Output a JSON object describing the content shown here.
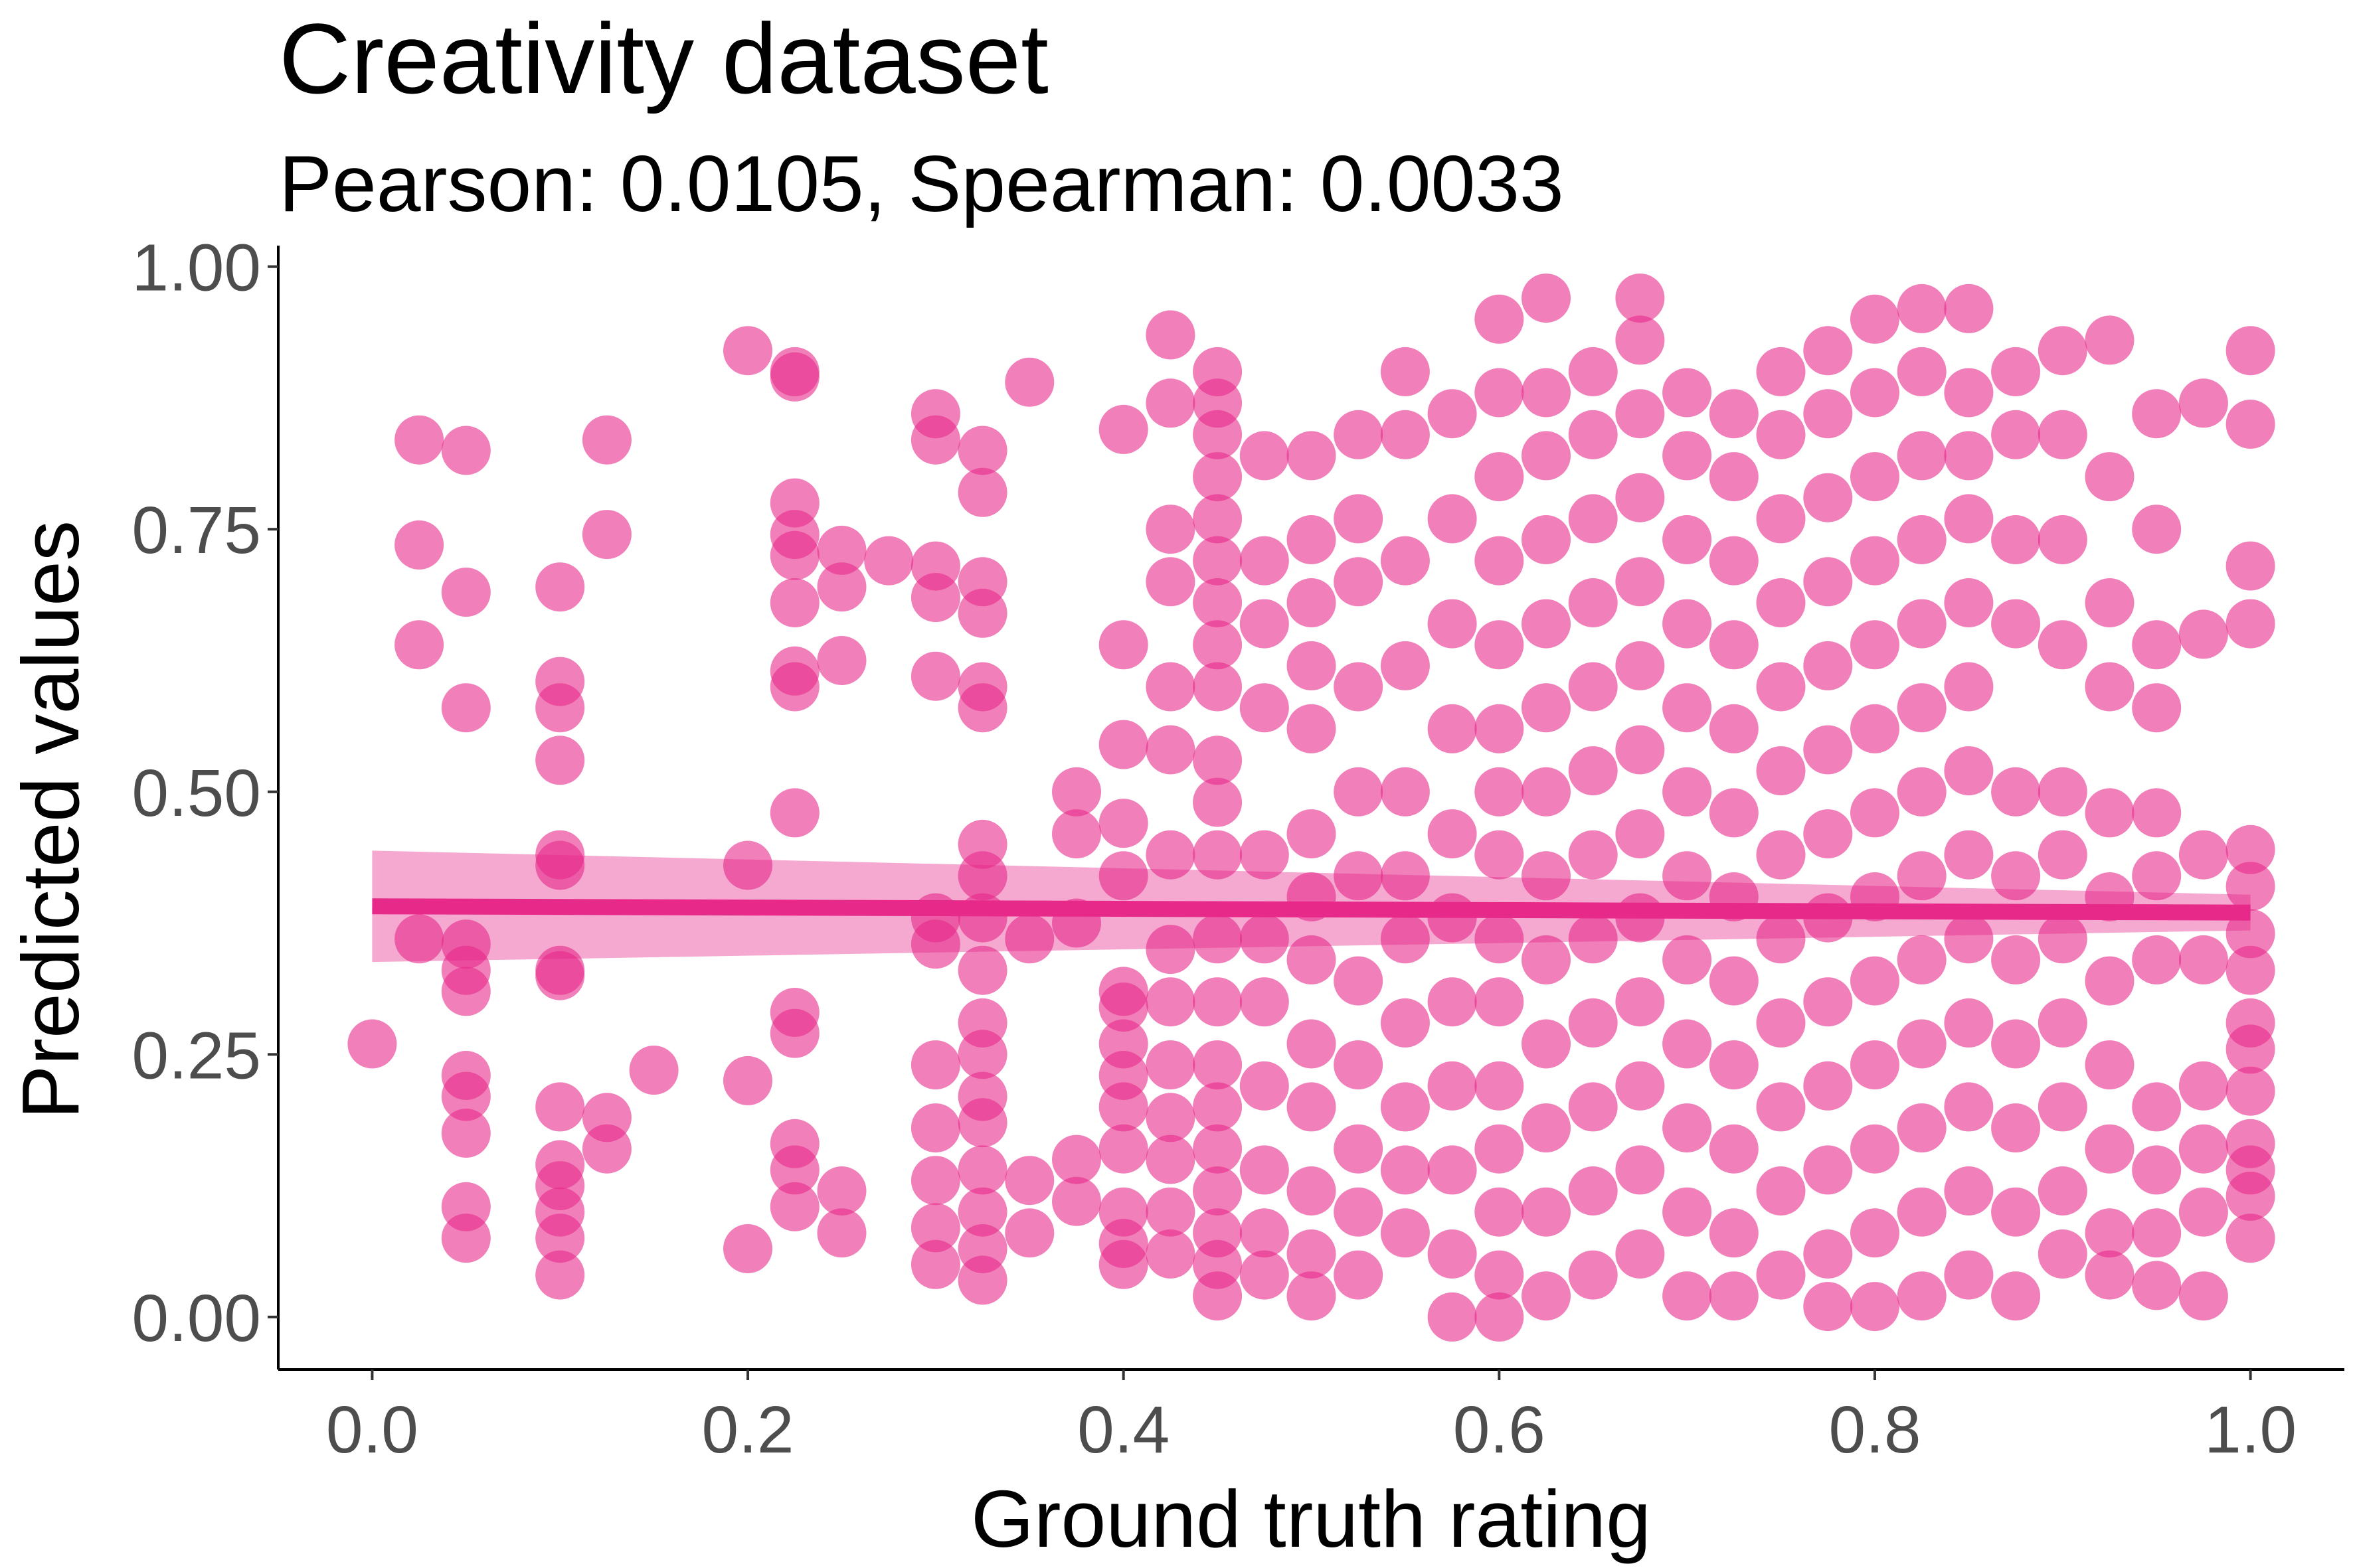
{
  "chart_data": {
    "type": "scatter",
    "title": "Creativity dataset",
    "subtitle": "Pearson: 0.0105, Spearman: 0.0033",
    "xlabel": "Ground truth rating",
    "ylabel": "Predicted values",
    "xlim": [
      -0.05,
      1.05
    ],
    "ylim": [
      -0.05,
      1.02
    ],
    "x_ticks": [
      0.0,
      0.2,
      0.4,
      0.6,
      0.8,
      1.0
    ],
    "x_tick_labels": [
      "0.0",
      "0.2",
      "0.4",
      "0.6",
      "0.8",
      "1.0"
    ],
    "y_ticks": [
      0.0,
      0.25,
      0.5,
      0.75,
      1.0
    ],
    "y_tick_labels": [
      "0.00",
      "0.25",
      "0.50",
      "0.75",
      "1.00"
    ],
    "grid": false,
    "legend": "none",
    "point_color": "#e7298a",
    "point_opacity": 0.6,
    "regression": {
      "type": "linear",
      "x": [
        0.0,
        1.0
      ],
      "y": [
        0.391,
        0.385
      ],
      "ci_lower": [
        0.338,
        0.368
      ],
      "ci_upper": [
        0.444,
        0.402
      ]
    },
    "points": [
      [
        0.0,
        0.26
      ],
      [
        0.025,
        0.835
      ],
      [
        0.025,
        0.735
      ],
      [
        0.025,
        0.64
      ],
      [
        0.025,
        0.36
      ],
      [
        0.05,
        0.825
      ],
      [
        0.05,
        0.69
      ],
      [
        0.05,
        0.58
      ],
      [
        0.05,
        0.355
      ],
      [
        0.05,
        0.33
      ],
      [
        0.05,
        0.31
      ],
      [
        0.05,
        0.23
      ],
      [
        0.05,
        0.21
      ],
      [
        0.05,
        0.175
      ],
      [
        0.05,
        0.105
      ],
      [
        0.05,
        0.075
      ],
      [
        0.1,
        0.695
      ],
      [
        0.1,
        0.605
      ],
      [
        0.1,
        0.58
      ],
      [
        0.1,
        0.53
      ],
      [
        0.1,
        0.44
      ],
      [
        0.1,
        0.43
      ],
      [
        0.1,
        0.33
      ],
      [
        0.1,
        0.325
      ],
      [
        0.1,
        0.2
      ],
      [
        0.1,
        0.145
      ],
      [
        0.1,
        0.125
      ],
      [
        0.1,
        0.1
      ],
      [
        0.1,
        0.075
      ],
      [
        0.1,
        0.04
      ],
      [
        0.125,
        0.835
      ],
      [
        0.125,
        0.745
      ],
      [
        0.125,
        0.19
      ],
      [
        0.125,
        0.16
      ],
      [
        0.15,
        0.235
      ],
      [
        0.2,
        0.92
      ],
      [
        0.2,
        0.43
      ],
      [
        0.2,
        0.225
      ],
      [
        0.2,
        0.065
      ],
      [
        0.225,
        0.9
      ],
      [
        0.225,
        0.895
      ],
      [
        0.225,
        0.775
      ],
      [
        0.225,
        0.745
      ],
      [
        0.225,
        0.725
      ],
      [
        0.225,
        0.68
      ],
      [
        0.225,
        0.615
      ],
      [
        0.225,
        0.6
      ],
      [
        0.225,
        0.48
      ],
      [
        0.225,
        0.29
      ],
      [
        0.225,
        0.27
      ],
      [
        0.225,
        0.165
      ],
      [
        0.225,
        0.14
      ],
      [
        0.225,
        0.105
      ],
      [
        0.25,
        0.73
      ],
      [
        0.25,
        0.695
      ],
      [
        0.25,
        0.625
      ],
      [
        0.25,
        0.12
      ],
      [
        0.25,
        0.08
      ],
      [
        0.275,
        0.72
      ],
      [
        0.3,
        0.86
      ],
      [
        0.3,
        0.835
      ],
      [
        0.3,
        0.715
      ],
      [
        0.3,
        0.685
      ],
      [
        0.3,
        0.61
      ],
      [
        0.3,
        0.38
      ],
      [
        0.3,
        0.355
      ],
      [
        0.3,
        0.24
      ],
      [
        0.3,
        0.18
      ],
      [
        0.3,
        0.13
      ],
      [
        0.3,
        0.085
      ],
      [
        0.3,
        0.05
      ],
      [
        0.325,
        0.825
      ],
      [
        0.325,
        0.785
      ],
      [
        0.325,
        0.7
      ],
      [
        0.325,
        0.67
      ],
      [
        0.325,
        0.6
      ],
      [
        0.325,
        0.58
      ],
      [
        0.325,
        0.45
      ],
      [
        0.325,
        0.42
      ],
      [
        0.325,
        0.38
      ],
      [
        0.325,
        0.33
      ],
      [
        0.325,
        0.28
      ],
      [
        0.325,
        0.25
      ],
      [
        0.325,
        0.21
      ],
      [
        0.325,
        0.185
      ],
      [
        0.325,
        0.14
      ],
      [
        0.325,
        0.1
      ],
      [
        0.325,
        0.065
      ],
      [
        0.325,
        0.035
      ],
      [
        0.35,
        0.89
      ],
      [
        0.35,
        0.36
      ],
      [
        0.35,
        0.13
      ],
      [
        0.35,
        0.08
      ],
      [
        0.375,
        0.5
      ],
      [
        0.375,
        0.46
      ],
      [
        0.375,
        0.375
      ],
      [
        0.375,
        0.15
      ],
      [
        0.375,
        0.11
      ],
      [
        0.4,
        0.845
      ],
      [
        0.4,
        0.64
      ],
      [
        0.4,
        0.545
      ],
      [
        0.4,
        0.47
      ],
      [
        0.4,
        0.42
      ],
      [
        0.4,
        0.31
      ],
      [
        0.4,
        0.295
      ],
      [
        0.4,
        0.26
      ],
      [
        0.4,
        0.23
      ],
      [
        0.4,
        0.2
      ],
      [
        0.4,
        0.16
      ],
      [
        0.4,
        0.1
      ],
      [
        0.4,
        0.07
      ],
      [
        0.4,
        0.05
      ],
      [
        0.425,
        0.935
      ],
      [
        0.425,
        0.87
      ],
      [
        0.425,
        0.75
      ],
      [
        0.425,
        0.7
      ],
      [
        0.425,
        0.6
      ],
      [
        0.425,
        0.54
      ],
      [
        0.425,
        0.44
      ],
      [
        0.425,
        0.35
      ],
      [
        0.425,
        0.3
      ],
      [
        0.425,
        0.24
      ],
      [
        0.425,
        0.19
      ],
      [
        0.425,
        0.15
      ],
      [
        0.425,
        0.1
      ],
      [
        0.425,
        0.06
      ],
      [
        0.45,
        0.9
      ],
      [
        0.45,
        0.87
      ],
      [
        0.45,
        0.84
      ],
      [
        0.45,
        0.8
      ],
      [
        0.45,
        0.76
      ],
      [
        0.45,
        0.72
      ],
      [
        0.45,
        0.68
      ],
      [
        0.45,
        0.64
      ],
      [
        0.45,
        0.6
      ],
      [
        0.45,
        0.53
      ],
      [
        0.45,
        0.49
      ],
      [
        0.45,
        0.44
      ],
      [
        0.45,
        0.36
      ],
      [
        0.45,
        0.3
      ],
      [
        0.45,
        0.24
      ],
      [
        0.45,
        0.2
      ],
      [
        0.45,
        0.16
      ],
      [
        0.45,
        0.12
      ],
      [
        0.45,
        0.08
      ],
      [
        0.45,
        0.05
      ],
      [
        0.45,
        0.02
      ],
      [
        0.475,
        0.82
      ],
      [
        0.475,
        0.72
      ],
      [
        0.475,
        0.66
      ],
      [
        0.475,
        0.58
      ],
      [
        0.475,
        0.44
      ],
      [
        0.475,
        0.36
      ],
      [
        0.475,
        0.3
      ],
      [
        0.475,
        0.22
      ],
      [
        0.475,
        0.14
      ],
      [
        0.475,
        0.08
      ],
      [
        0.475,
        0.04
      ],
      [
        0.5,
        0.82
      ],
      [
        0.5,
        0.74
      ],
      [
        0.5,
        0.68
      ],
      [
        0.5,
        0.62
      ],
      [
        0.5,
        0.56
      ],
      [
        0.5,
        0.46
      ],
      [
        0.5,
        0.4
      ],
      [
        0.5,
        0.34
      ],
      [
        0.5,
        0.26
      ],
      [
        0.5,
        0.2
      ],
      [
        0.5,
        0.12
      ],
      [
        0.5,
        0.06
      ],
      [
        0.5,
        0.02
      ],
      [
        0.525,
        0.84
      ],
      [
        0.525,
        0.76
      ],
      [
        0.525,
        0.7
      ],
      [
        0.525,
        0.6
      ],
      [
        0.525,
        0.5
      ],
      [
        0.525,
        0.42
      ],
      [
        0.525,
        0.32
      ],
      [
        0.525,
        0.24
      ],
      [
        0.525,
        0.16
      ],
      [
        0.525,
        0.1
      ],
      [
        0.525,
        0.04
      ],
      [
        0.55,
        0.9
      ],
      [
        0.55,
        0.84
      ],
      [
        0.55,
        0.72
      ],
      [
        0.55,
        0.62
      ],
      [
        0.55,
        0.5
      ],
      [
        0.55,
        0.42
      ],
      [
        0.55,
        0.36
      ],
      [
        0.55,
        0.28
      ],
      [
        0.55,
        0.2
      ],
      [
        0.55,
        0.14
      ],
      [
        0.55,
        0.08
      ],
      [
        0.575,
        0.86
      ],
      [
        0.575,
        0.76
      ],
      [
        0.575,
        0.66
      ],
      [
        0.575,
        0.56
      ],
      [
        0.575,
        0.46
      ],
      [
        0.575,
        0.38
      ],
      [
        0.575,
        0.3
      ],
      [
        0.575,
        0.22
      ],
      [
        0.575,
        0.14
      ],
      [
        0.575,
        0.06
      ],
      [
        0.575,
        0.0
      ],
      [
        0.6,
        0.95
      ],
      [
        0.6,
        0.88
      ],
      [
        0.6,
        0.8
      ],
      [
        0.6,
        0.72
      ],
      [
        0.6,
        0.64
      ],
      [
        0.6,
        0.56
      ],
      [
        0.6,
        0.5
      ],
      [
        0.6,
        0.44
      ],
      [
        0.6,
        0.36
      ],
      [
        0.6,
        0.3
      ],
      [
        0.6,
        0.22
      ],
      [
        0.6,
        0.16
      ],
      [
        0.6,
        0.1
      ],
      [
        0.6,
        0.04
      ],
      [
        0.6,
        0.0
      ],
      [
        0.625,
        0.97
      ],
      [
        0.625,
        0.88
      ],
      [
        0.625,
        0.82
      ],
      [
        0.625,
        0.74
      ],
      [
        0.625,
        0.66
      ],
      [
        0.625,
        0.58
      ],
      [
        0.625,
        0.5
      ],
      [
        0.625,
        0.42
      ],
      [
        0.625,
        0.34
      ],
      [
        0.625,
        0.26
      ],
      [
        0.625,
        0.18
      ],
      [
        0.625,
        0.1
      ],
      [
        0.625,
        0.02
      ],
      [
        0.65,
        0.9
      ],
      [
        0.65,
        0.84
      ],
      [
        0.65,
        0.76
      ],
      [
        0.65,
        0.68
      ],
      [
        0.65,
        0.6
      ],
      [
        0.65,
        0.52
      ],
      [
        0.65,
        0.44
      ],
      [
        0.65,
        0.36
      ],
      [
        0.65,
        0.28
      ],
      [
        0.65,
        0.2
      ],
      [
        0.65,
        0.12
      ],
      [
        0.65,
        0.04
      ],
      [
        0.675,
        0.97
      ],
      [
        0.675,
        0.93
      ],
      [
        0.675,
        0.86
      ],
      [
        0.675,
        0.78
      ],
      [
        0.675,
        0.7
      ],
      [
        0.675,
        0.62
      ],
      [
        0.675,
        0.54
      ],
      [
        0.675,
        0.46
      ],
      [
        0.675,
        0.38
      ],
      [
        0.675,
        0.3
      ],
      [
        0.675,
        0.22
      ],
      [
        0.675,
        0.14
      ],
      [
        0.675,
        0.06
      ],
      [
        0.7,
        0.88
      ],
      [
        0.7,
        0.82
      ],
      [
        0.7,
        0.74
      ],
      [
        0.7,
        0.66
      ],
      [
        0.7,
        0.58
      ],
      [
        0.7,
        0.5
      ],
      [
        0.7,
        0.42
      ],
      [
        0.7,
        0.34
      ],
      [
        0.7,
        0.26
      ],
      [
        0.7,
        0.18
      ],
      [
        0.7,
        0.1
      ],
      [
        0.7,
        0.02
      ],
      [
        0.725,
        0.86
      ],
      [
        0.725,
        0.8
      ],
      [
        0.725,
        0.72
      ],
      [
        0.725,
        0.64
      ],
      [
        0.725,
        0.56
      ],
      [
        0.725,
        0.48
      ],
      [
        0.725,
        0.4
      ],
      [
        0.725,
        0.32
      ],
      [
        0.725,
        0.24
      ],
      [
        0.725,
        0.16
      ],
      [
        0.725,
        0.08
      ],
      [
        0.725,
        0.02
      ],
      [
        0.75,
        0.9
      ],
      [
        0.75,
        0.84
      ],
      [
        0.75,
        0.76
      ],
      [
        0.75,
        0.68
      ],
      [
        0.75,
        0.6
      ],
      [
        0.75,
        0.52
      ],
      [
        0.75,
        0.44
      ],
      [
        0.75,
        0.36
      ],
      [
        0.75,
        0.28
      ],
      [
        0.75,
        0.2
      ],
      [
        0.75,
        0.12
      ],
      [
        0.75,
        0.04
      ],
      [
        0.775,
        0.92
      ],
      [
        0.775,
        0.86
      ],
      [
        0.775,
        0.78
      ],
      [
        0.775,
        0.7
      ],
      [
        0.775,
        0.62
      ],
      [
        0.775,
        0.54
      ],
      [
        0.775,
        0.46
      ],
      [
        0.775,
        0.38
      ],
      [
        0.775,
        0.3
      ],
      [
        0.775,
        0.22
      ],
      [
        0.775,
        0.14
      ],
      [
        0.775,
        0.06
      ],
      [
        0.775,
        0.01
      ],
      [
        0.8,
        0.95
      ],
      [
        0.8,
        0.88
      ],
      [
        0.8,
        0.8
      ],
      [
        0.8,
        0.72
      ],
      [
        0.8,
        0.64
      ],
      [
        0.8,
        0.56
      ],
      [
        0.8,
        0.48
      ],
      [
        0.8,
        0.4
      ],
      [
        0.8,
        0.32
      ],
      [
        0.8,
        0.24
      ],
      [
        0.8,
        0.16
      ],
      [
        0.8,
        0.08
      ],
      [
        0.8,
        0.01
      ],
      [
        0.825,
        0.96
      ],
      [
        0.825,
        0.9
      ],
      [
        0.825,
        0.82
      ],
      [
        0.825,
        0.74
      ],
      [
        0.825,
        0.66
      ],
      [
        0.825,
        0.58
      ],
      [
        0.825,
        0.5
      ],
      [
        0.825,
        0.42
      ],
      [
        0.825,
        0.34
      ],
      [
        0.825,
        0.26
      ],
      [
        0.825,
        0.18
      ],
      [
        0.825,
        0.1
      ],
      [
        0.825,
        0.02
      ],
      [
        0.85,
        0.96
      ],
      [
        0.85,
        0.88
      ],
      [
        0.85,
        0.82
      ],
      [
        0.85,
        0.76
      ],
      [
        0.85,
        0.68
      ],
      [
        0.85,
        0.6
      ],
      [
        0.85,
        0.52
      ],
      [
        0.85,
        0.44
      ],
      [
        0.85,
        0.36
      ],
      [
        0.85,
        0.28
      ],
      [
        0.85,
        0.2
      ],
      [
        0.85,
        0.12
      ],
      [
        0.85,
        0.04
      ],
      [
        0.875,
        0.9
      ],
      [
        0.875,
        0.84
      ],
      [
        0.875,
        0.74
      ],
      [
        0.875,
        0.66
      ],
      [
        0.875,
        0.5
      ],
      [
        0.875,
        0.42
      ],
      [
        0.875,
        0.34
      ],
      [
        0.875,
        0.26
      ],
      [
        0.875,
        0.18
      ],
      [
        0.875,
        0.1
      ],
      [
        0.875,
        0.02
      ],
      [
        0.9,
        0.92
      ],
      [
        0.9,
        0.84
      ],
      [
        0.9,
        0.74
      ],
      [
        0.9,
        0.64
      ],
      [
        0.9,
        0.5
      ],
      [
        0.9,
        0.44
      ],
      [
        0.9,
        0.36
      ],
      [
        0.9,
        0.28
      ],
      [
        0.9,
        0.2
      ],
      [
        0.9,
        0.12
      ],
      [
        0.9,
        0.06
      ],
      [
        0.925,
        0.93
      ],
      [
        0.925,
        0.8
      ],
      [
        0.925,
        0.68
      ],
      [
        0.925,
        0.6
      ],
      [
        0.925,
        0.48
      ],
      [
        0.925,
        0.4
      ],
      [
        0.925,
        0.32
      ],
      [
        0.925,
        0.24
      ],
      [
        0.925,
        0.16
      ],
      [
        0.925,
        0.08
      ],
      [
        0.925,
        0.04
      ],
      [
        0.95,
        0.86
      ],
      [
        0.95,
        0.75
      ],
      [
        0.95,
        0.64
      ],
      [
        0.95,
        0.58
      ],
      [
        0.95,
        0.48
      ],
      [
        0.95,
        0.42
      ],
      [
        0.95,
        0.34
      ],
      [
        0.95,
        0.2
      ],
      [
        0.95,
        0.14
      ],
      [
        0.95,
        0.08
      ],
      [
        0.95,
        0.03
      ],
      [
        0.975,
        0.87
      ],
      [
        0.975,
        0.65
      ],
      [
        0.975,
        0.44
      ],
      [
        0.975,
        0.34
      ],
      [
        0.975,
        0.22
      ],
      [
        0.975,
        0.16
      ],
      [
        0.975,
        0.1
      ],
      [
        0.975,
        0.02
      ],
      [
        1.0,
        0.92
      ],
      [
        1.0,
        0.85
      ],
      [
        1.0,
        0.715
      ],
      [
        1.0,
        0.66
      ],
      [
        1.0,
        0.445
      ],
      [
        1.0,
        0.41
      ],
      [
        1.0,
        0.365
      ],
      [
        1.0,
        0.33
      ],
      [
        1.0,
        0.28
      ],
      [
        1.0,
        0.255
      ],
      [
        1.0,
        0.215
      ],
      [
        1.0,
        0.165
      ],
      [
        1.0,
        0.14
      ],
      [
        1.0,
        0.115
      ],
      [
        1.0,
        0.075
      ]
    ]
  }
}
